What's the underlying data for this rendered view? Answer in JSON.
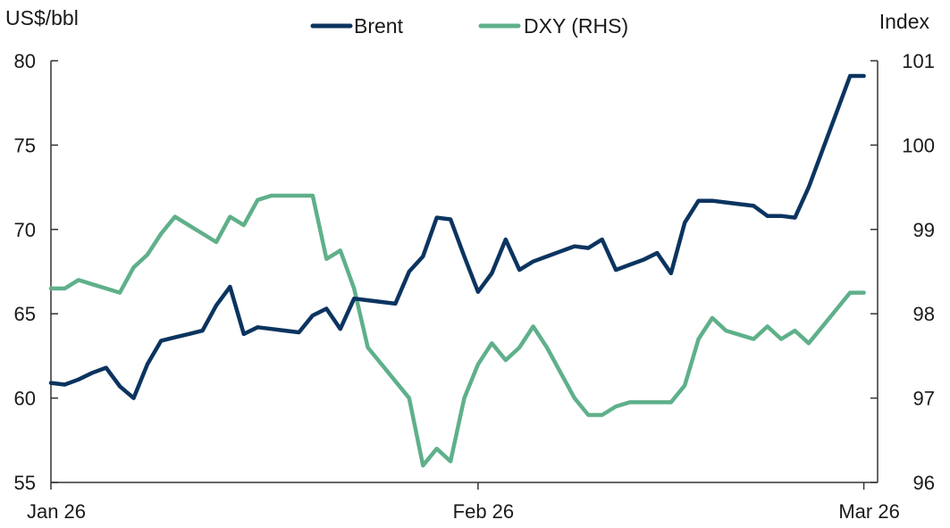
{
  "chart_data": {
    "type": "line",
    "left_axis_unit": "US$/bbl",
    "right_axis_unit": "Index",
    "x_ticks": [
      "Jan 26",
      "Feb 26",
      "Mar 26"
    ],
    "x_range": [
      0,
      60
    ],
    "x_tick_positions": [
      0,
      31,
      59
    ],
    "ylim_left": [
      55,
      80
    ],
    "yticks_left": [
      "80",
      "75",
      "70",
      "65",
      "60",
      "55"
    ],
    "yticks_left_values": [
      80,
      75,
      70,
      65,
      60,
      55
    ],
    "ylim_right": [
      96,
      101
    ],
    "yticks_right": [
      "101",
      "100",
      "99",
      "98",
      "97",
      "96"
    ],
    "yticks_right_values": [
      101,
      100,
      99,
      98,
      97,
      96
    ],
    "legend_position": "top-center",
    "grid": false,
    "series": [
      {
        "name": "Brent",
        "axis": "left",
        "color": "#0b3460",
        "x": [
          0,
          1,
          2,
          3,
          4,
          5,
          6,
          7,
          8,
          9,
          10,
          11,
          12,
          13,
          14,
          15,
          16,
          17,
          18,
          19,
          20,
          21,
          22,
          23,
          24,
          25,
          26,
          27,
          28,
          29,
          30,
          31,
          32,
          33,
          34,
          35,
          36,
          37,
          38,
          39,
          40,
          41,
          42,
          43,
          44,
          45,
          46,
          47,
          48,
          49,
          50,
          51,
          52,
          53,
          54,
          55,
          56,
          57,
          58,
          59
        ],
        "values": [
          60.9,
          60.8,
          61.1,
          61.5,
          61.8,
          60.7,
          60.0,
          62.0,
          63.4,
          63.6,
          63.8,
          64.0,
          65.5,
          66.6,
          63.8,
          64.2,
          64.1,
          64.0,
          63.9,
          64.9,
          65.3,
          64.1,
          65.9,
          65.8,
          65.7,
          65.6,
          67.5,
          68.4,
          70.7,
          70.6,
          68.4,
          66.3,
          67.4,
          69.4,
          67.6,
          68.1,
          68.4,
          68.7,
          69.0,
          68.9,
          69.4,
          67.6,
          67.9,
          68.2,
          68.6,
          67.4,
          70.4,
          71.7,
          71.7,
          71.6,
          71.5,
          71.4,
          70.8,
          70.8,
          70.7,
          72.5,
          74.7,
          76.9,
          79.1,
          79.1
        ]
      },
      {
        "name": "DXY (RHS)",
        "axis": "right",
        "color": "#5fb08a",
        "x": [
          0,
          1,
          2,
          3,
          4,
          5,
          6,
          7,
          8,
          9,
          10,
          11,
          12,
          13,
          14,
          15,
          16,
          17,
          18,
          19,
          20,
          21,
          22,
          23,
          24,
          25,
          26,
          27,
          28,
          29,
          30,
          31,
          32,
          33,
          34,
          35,
          36,
          37,
          38,
          39,
          40,
          41,
          42,
          43,
          44,
          45,
          46,
          47,
          48,
          49,
          50,
          51,
          52,
          53,
          54,
          55,
          56,
          57,
          58,
          59
        ],
        "values": [
          98.3,
          98.3,
          98.4,
          98.35,
          98.3,
          98.25,
          98.55,
          98.7,
          98.95,
          99.15,
          99.05,
          98.95,
          98.85,
          99.15,
          99.05,
          99.35,
          99.4,
          99.4,
          99.4,
          99.4,
          98.65,
          98.75,
          98.3,
          97.6,
          97.4,
          97.2,
          97.0,
          96.2,
          96.4,
          96.25,
          97.0,
          97.4,
          97.65,
          97.45,
          97.6,
          97.85,
          97.6,
          97.3,
          97.0,
          96.8,
          96.8,
          96.9,
          96.95,
          96.95,
          96.95,
          96.95,
          97.15,
          97.7,
          97.95,
          97.8,
          97.75,
          97.7,
          97.85,
          97.7,
          97.8,
          97.65,
          97.85,
          98.05,
          98.25,
          98.25
        ]
      }
    ]
  }
}
